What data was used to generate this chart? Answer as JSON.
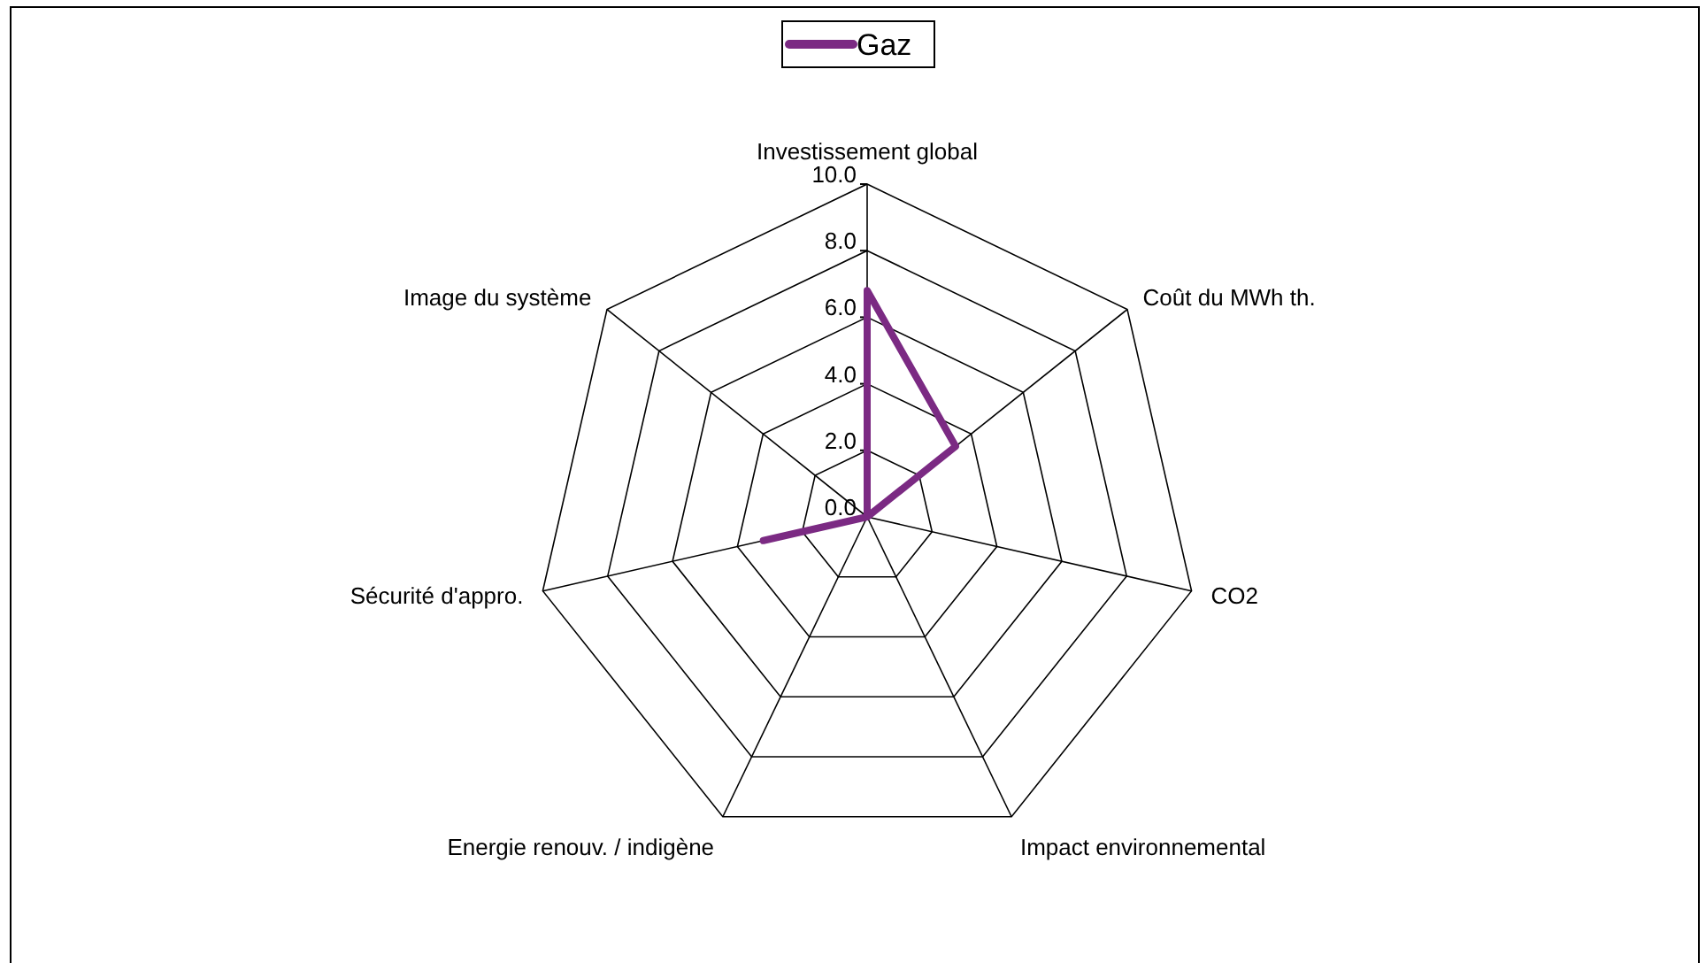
{
  "chart_data": {
    "type": "radar",
    "categories": [
      "Investissement global",
      "Coût du MWh th.",
      "CO2",
      "Impact environnemental",
      "Energie renouv. / indigène",
      "Sécurité d'appro.",
      "Image du système"
    ],
    "series": [
      {
        "name": "Gaz",
        "color": "#7b2a83",
        "values": [
          6.8,
          3.4,
          0,
          0,
          0,
          3.2,
          0
        ]
      }
    ],
    "ylim": [
      0,
      10
    ],
    "yticks": [
      {
        "value": 0,
        "label": "0.0"
      },
      {
        "value": 2,
        "label": "2.0"
      },
      {
        "value": 4,
        "label": "4.0"
      },
      {
        "value": 6,
        "label": "6.0"
      },
      {
        "value": 8,
        "label": "8.0"
      },
      {
        "value": 10,
        "label": "10.0"
      }
    ],
    "grid": true,
    "legend": "top"
  }
}
